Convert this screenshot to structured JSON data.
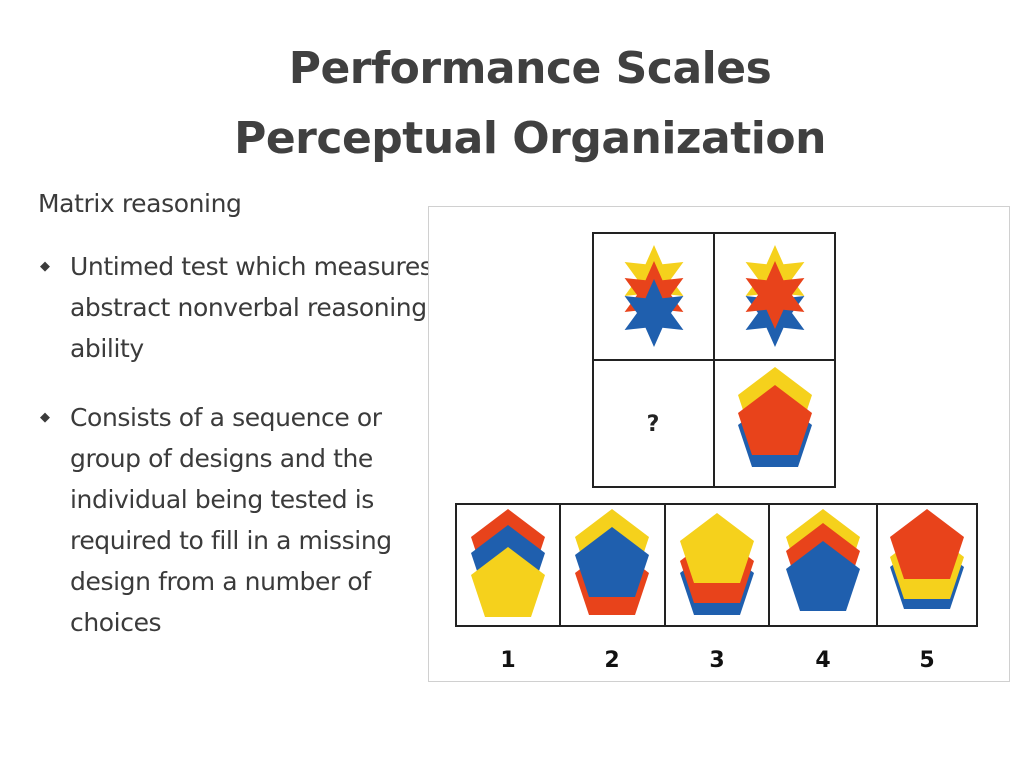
{
  "slide": {
    "title_line1": "Performance Scales",
    "title_line2": "Perceptual Organization",
    "subheading": "Matrix reasoning",
    "bullets": [
      "Untimed test which measures abstract nonverbal reasoning ability",
      "Consists of a sequence or group of designs and the individual being tested is required to fill in a missing design from a number of choices"
    ]
  },
  "figure": {
    "question_mark": "?",
    "choice_labels": [
      "1",
      "2",
      "3",
      "4",
      "5"
    ],
    "colors": {
      "yellow": "#f5d11c",
      "red": "#e8431b",
      "blue": "#1f5fae",
      "border": "#222222"
    }
  }
}
